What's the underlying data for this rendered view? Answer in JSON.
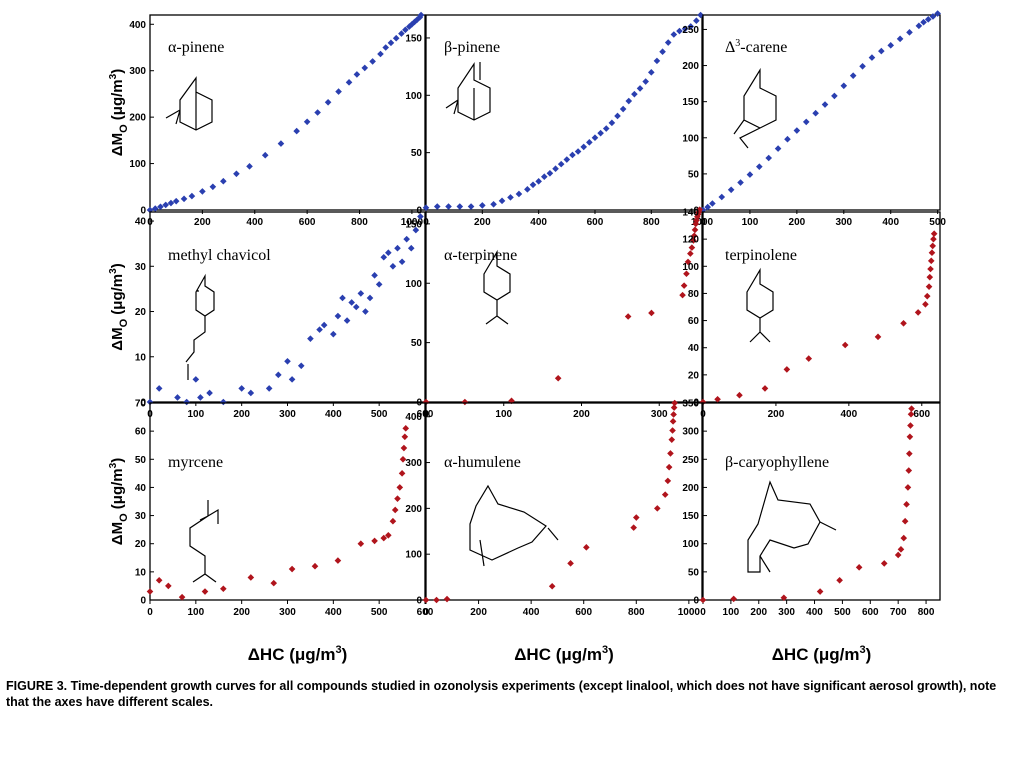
{
  "figure": {
    "caption_label": "FIGURE 3.",
    "caption_text": " Time-dependent growth curves for all compounds studied in ozonolysis experiments (except linalool, which does not have significant aerosol growth), note that the axes have different scales.",
    "ylabel": "ΔM",
    "ylabel_sub": "O",
    "ylabel_unit": " (μg/m",
    "ylabel_sup": "3",
    "ylabel_close": ")",
    "xlabel": "ΔHC (μg/m",
    "xlabel_sup": "3",
    "xlabel_close": ")"
  },
  "colors": {
    "blue": "#2a3fb0",
    "red": "#b0141c"
  },
  "chart_data": [
    {
      "id": "a-pinene",
      "label": "α-pinene",
      "type": "scatter",
      "xlim": [
        0,
        1050
      ],
      "ylim": [
        0,
        420
      ],
      "xticks": [
        0,
        200,
        400,
        600,
        800,
        1000
      ],
      "yticks": [
        0,
        100,
        200,
        300,
        400
      ],
      "color": "blue",
      "x": [
        0,
        20,
        40,
        60,
        80,
        100,
        130,
        160,
        200,
        240,
        280,
        330,
        380,
        440,
        500,
        560,
        600,
        640,
        680,
        720,
        760,
        790,
        820,
        850,
        880,
        900,
        920,
        940,
        960,
        975,
        990,
        1000,
        1010,
        1020,
        1030,
        1035
      ],
      "y": [
        0,
        3,
        7,
        11,
        15,
        19,
        24,
        30,
        40,
        50,
        62,
        78,
        94,
        118,
        143,
        170,
        190,
        210,
        232,
        255,
        275,
        292,
        306,
        320,
        336,
        350,
        360,
        370,
        380,
        388,
        395,
        400,
        405,
        410,
        415,
        420
      ]
    },
    {
      "id": "b-pinene",
      "label": "β-pinene",
      "type": "scatter",
      "xlim": [
        0,
        980
      ],
      "ylim": [
        0,
        170
      ],
      "xticks": [
        0,
        200,
        400,
        600,
        800,
        1000
      ],
      "yticks": [
        0,
        50,
        100,
        150
      ],
      "color": "blue",
      "x": [
        0,
        40,
        80,
        120,
        160,
        200,
        240,
        270,
        300,
        330,
        360,
        380,
        400,
        420,
        440,
        460,
        480,
        500,
        520,
        540,
        560,
        580,
        600,
        620,
        640,
        660,
        680,
        700,
        720,
        740,
        760,
        780,
        800,
        820,
        840,
        860,
        880,
        900,
        920,
        940,
        960,
        975
      ],
      "y": [
        2,
        3,
        3,
        3,
        3,
        4,
        5,
        8,
        11,
        14,
        18,
        22,
        25,
        29,
        32,
        36,
        40,
        44,
        48,
        51,
        55,
        59,
        63,
        67,
        71,
        76,
        82,
        88,
        95,
        101,
        106,
        112,
        120,
        130,
        138,
        146,
        153,
        156,
        158,
        160,
        165,
        170
      ]
    },
    {
      "id": "d3-carene",
      "label": "Δ3-carene",
      "type": "scatter",
      "xlim": [
        0,
        505
      ],
      "ylim": [
        0,
        270
      ],
      "xticks": [
        0,
        100,
        200,
        300,
        400,
        500
      ],
      "yticks": [
        0,
        50,
        100,
        150,
        200,
        250
      ],
      "color": "blue",
      "x": [
        0,
        10,
        20,
        40,
        60,
        80,
        100,
        120,
        140,
        160,
        180,
        200,
        220,
        240,
        260,
        280,
        300,
        320,
        340,
        360,
        380,
        400,
        420,
        440,
        460,
        470,
        480,
        490,
        500
      ],
      "y": [
        0,
        4,
        9,
        18,
        28,
        38,
        49,
        60,
        72,
        85,
        98,
        110,
        122,
        134,
        146,
        158,
        172,
        186,
        199,
        211,
        220,
        228,
        237,
        246,
        255,
        260,
        264,
        268,
        272
      ]
    },
    {
      "id": "methyl-chavicol",
      "label": "methyl chavicol",
      "type": "scatter",
      "xlim": [
        0,
        600
      ],
      "ylim": [
        0,
        42
      ],
      "xticks": [
        0,
        100,
        200,
        300,
        400,
        500,
        600
      ],
      "yticks": [
        0,
        10,
        20,
        30,
        40
      ],
      "color": "blue",
      "x": [
        0,
        20,
        60,
        80,
        100,
        110,
        130,
        160,
        200,
        220,
        260,
        280,
        300,
        310,
        330,
        350,
        370,
        380,
        400,
        410,
        420,
        430,
        440,
        450,
        460,
        470,
        480,
        490,
        500,
        510,
        520,
        530,
        540,
        550,
        560,
        570,
        580,
        590
      ],
      "y": [
        0,
        3,
        1,
        0,
        5,
        1,
        2,
        0,
        3,
        2,
        3,
        6,
        9,
        5,
        8,
        14,
        16,
        17,
        15,
        19,
        23,
        18,
        22,
        21,
        24,
        20,
        23,
        28,
        26,
        32,
        33,
        30,
        34,
        31,
        36,
        34,
        38,
        41
      ]
    },
    {
      "id": "a-terpinene",
      "label": "α-terpinene",
      "type": "scatter",
      "xlim": [
        0,
        355
      ],
      "ylim": [
        0,
        160
      ],
      "xticks": [
        0,
        100,
        200,
        300
      ],
      "yticks": [
        0,
        50,
        100,
        150
      ],
      "color": "red",
      "x": [
        0,
        50,
        110,
        170,
        260,
        290,
        330,
        332,
        335,
        337,
        340,
        342,
        344,
        345,
        346,
        347,
        348,
        349,
        350,
        351,
        352
      ],
      "y": [
        0,
        0,
        1,
        20,
        72,
        75,
        90,
        98,
        108,
        118,
        125,
        130,
        136,
        140,
        145,
        150,
        153,
        156,
        158,
        160,
        162
      ]
    },
    {
      "id": "terpinolene",
      "label": "terpinolene",
      "type": "scatter",
      "xlim": [
        0,
        650
      ],
      "ylim": [
        0,
        140
      ],
      "xticks": [
        0,
        200,
        400,
        600
      ],
      "yticks": [
        0,
        20,
        40,
        60,
        80,
        100,
        120,
        140
      ],
      "color": "red",
      "x": [
        0,
        40,
        100,
        170,
        230,
        290,
        390,
        480,
        550,
        590,
        610,
        615,
        620,
        622,
        624,
        626,
        628,
        630,
        632,
        634
      ],
      "y": [
        0,
        2,
        5,
        10,
        24,
        32,
        42,
        48,
        58,
        66,
        72,
        78,
        85,
        92,
        98,
        104,
        110,
        115,
        120,
        124
      ]
    },
    {
      "id": "myrcene",
      "label": "myrcene",
      "type": "scatter",
      "xlim": [
        0,
        600
      ],
      "ylim": [
        0,
        70
      ],
      "xticks": [
        0,
        100,
        200,
        300,
        400,
        500,
        600
      ],
      "yticks": [
        0,
        10,
        20,
        30,
        40,
        50,
        60,
        70
      ],
      "color": "red",
      "x": [
        0,
        20,
        40,
        70,
        120,
        160,
        220,
        270,
        310,
        360,
        410,
        460,
        490,
        510,
        520,
        530,
        535,
        540,
        545,
        550,
        552,
        554,
        556,
        558
      ],
      "y": [
        3,
        7,
        5,
        1,
        3,
        4,
        8,
        6,
        11,
        12,
        14,
        20,
        21,
        22,
        23,
        28,
        32,
        36,
        40,
        45,
        50,
        54,
        58,
        61
      ]
    },
    {
      "id": "a-humulene",
      "label": "α-humulene",
      "type": "scatter",
      "xlim": [
        0,
        1050
      ],
      "ylim": [
        0,
        430
      ],
      "xticks": [
        0,
        200,
        400,
        600,
        800,
        1000
      ],
      "yticks": [
        0,
        100,
        200,
        300,
        400
      ],
      "color": "red",
      "x": [
        0,
        40,
        80,
        480,
        550,
        610,
        790,
        800,
        880,
        910,
        920,
        925,
        930,
        935,
        938,
        940,
        942,
        944,
        946
      ],
      "y": [
        0,
        0,
        2,
        30,
        80,
        115,
        158,
        180,
        200,
        230,
        260,
        290,
        320,
        350,
        370,
        390,
        405,
        420,
        430
      ]
    },
    {
      "id": "b-caryophyllene",
      "label": "β-caryophyllene",
      "type": "scatter",
      "xlim": [
        0,
        850
      ],
      "ylim": [
        0,
        350
      ],
      "xticks": [
        0,
        100,
        200,
        300,
        400,
        500,
        600,
        700,
        800
      ],
      "yticks": [
        0,
        50,
        100,
        150,
        200,
        250,
        300,
        350
      ],
      "color": "red",
      "x": [
        0,
        110,
        290,
        420,
        490,
        560,
        650,
        700,
        710,
        720,
        725,
        730,
        735,
        738,
        740,
        742,
        744,
        746,
        748
      ],
      "y": [
        0,
        2,
        4,
        15,
        35,
        58,
        65,
        80,
        90,
        110,
        140,
        170,
        200,
        230,
        260,
        290,
        310,
        330,
        340
      ]
    }
  ],
  "extra_ticks": {
    "row1_x": [
      "0",
      "200",
      "400",
      "600",
      "800",
      "1000"
    ],
    "terpinolene_extra_x": "0"
  }
}
